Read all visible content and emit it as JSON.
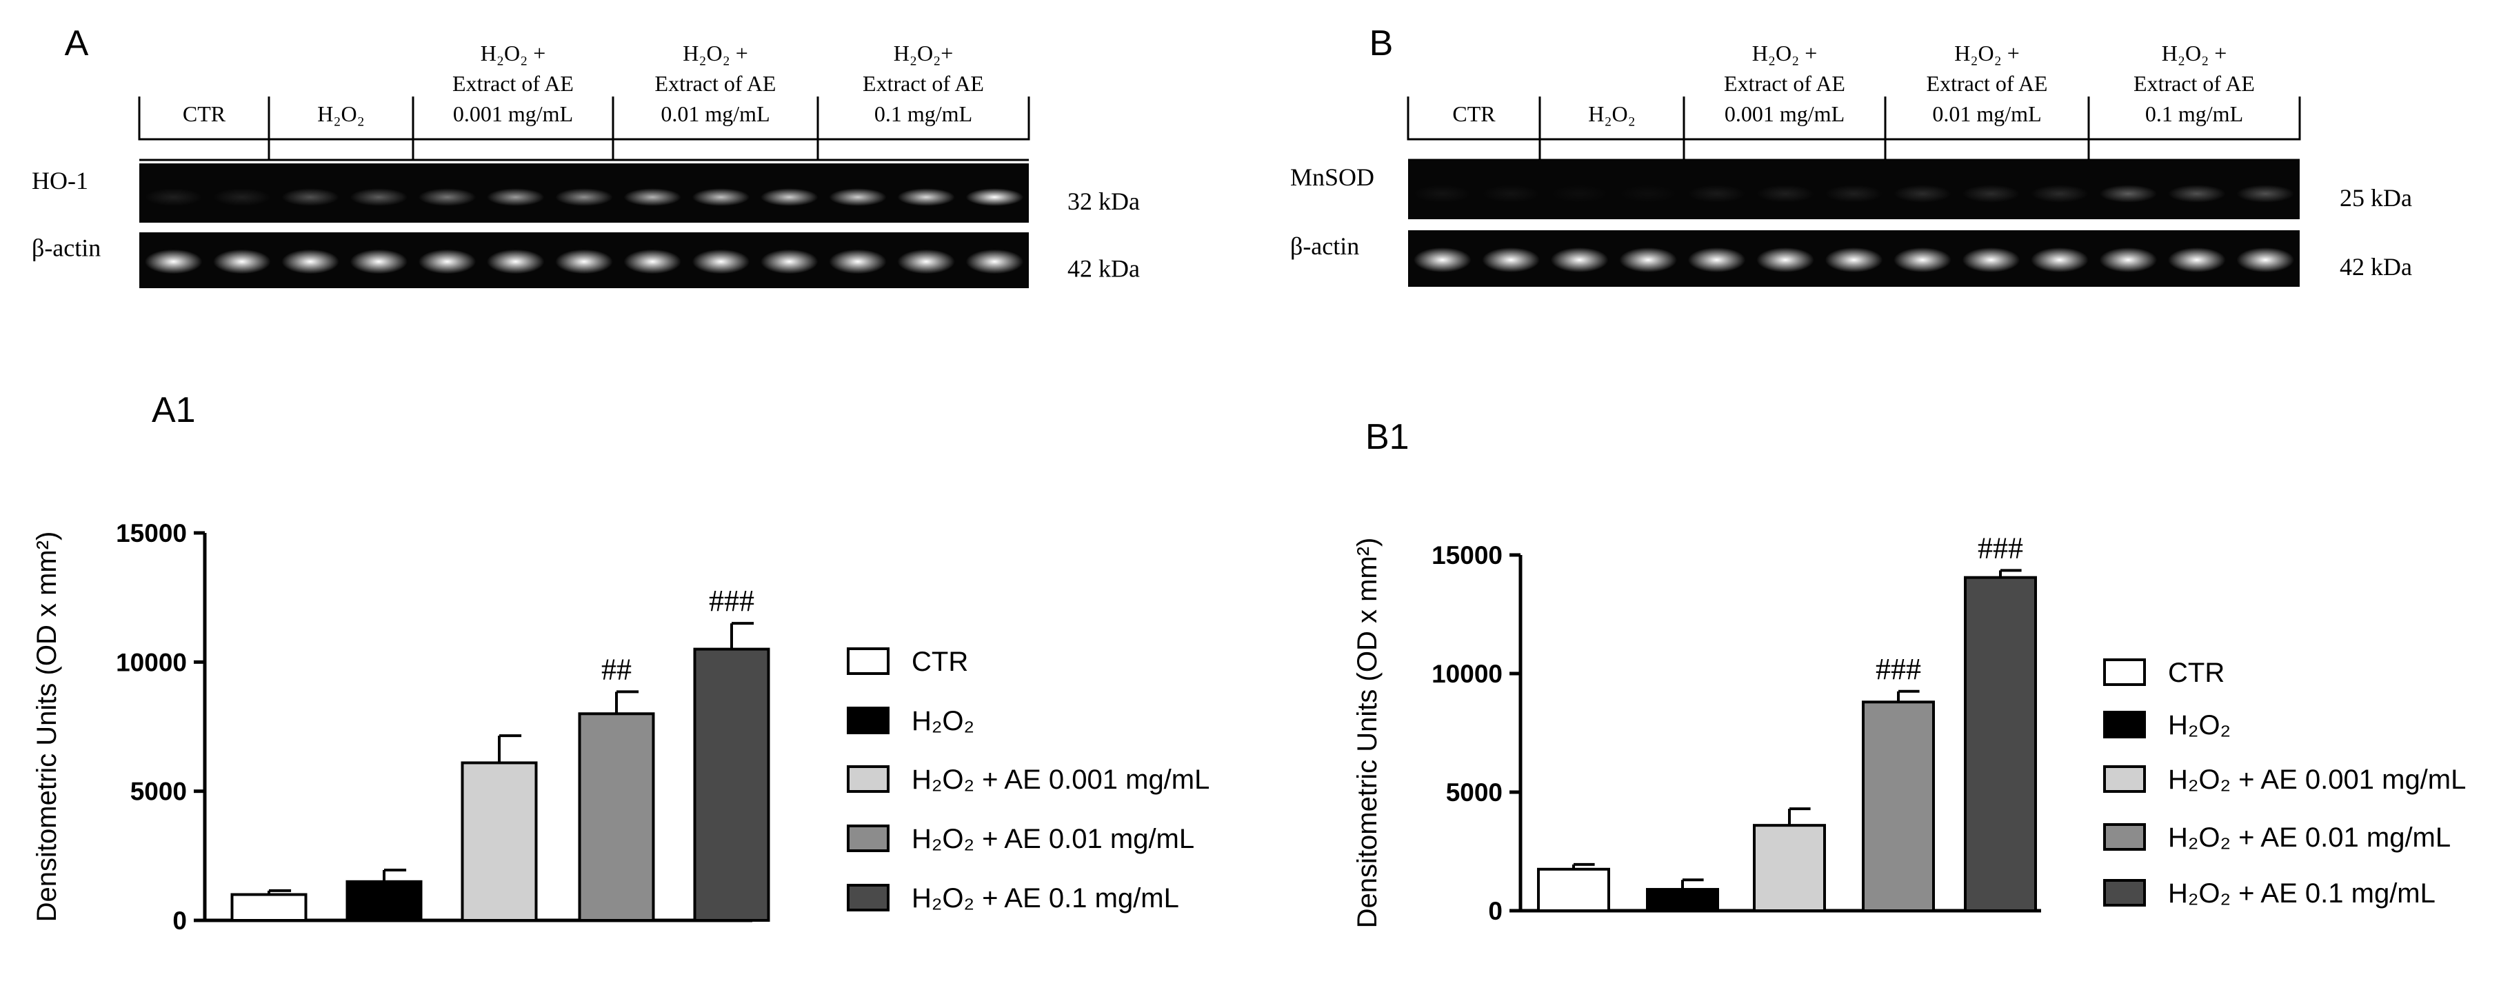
{
  "blots": [
    {
      "label": "A",
      "lanes": [
        [
          "CTR"
        ],
        [
          "H₂O₂"
        ],
        [
          "H₂O₂ +",
          "Extract of AE",
          "0.001 mg/mL"
        ],
        [
          "H₂O₂ +",
          "Extract of AE",
          "0.01 mg/mL"
        ],
        [
          "H₂O₂+",
          "Extract of AE",
          "0.1 mg/mL"
        ]
      ],
      "rows": [
        {
          "name": "HO-1",
          "size": "32 kDa"
        },
        {
          "name": "β-actin",
          "size": "42 kDa"
        }
      ]
    },
    {
      "label": "B",
      "lanes": [
        [
          "CTR"
        ],
        [
          "H₂O₂"
        ],
        [
          "H₂O₂ +",
          "Extract of AE",
          "0.001 mg/mL"
        ],
        [
          "H₂O₂ +",
          "Extract of AE",
          "0.01 mg/mL"
        ],
        [
          "H₂O₂ +",
          "Extract of AE",
          "0.1 mg/mL"
        ]
      ],
      "rows": [
        {
          "name": "MnSOD",
          "size": "25 kDa"
        },
        {
          "name": "β-actin",
          "size": "42 kDa"
        }
      ]
    }
  ],
  "chart_data": [
    {
      "type": "bar",
      "title": "A1",
      "y_label": "Densitometric Units (OD x mm²)",
      "categories": [
        "CTR",
        "H₂O₂",
        "H₂O₂ + AE 0.001 mg/mL",
        "H₂O₂ + AE 0.01 mg/mL",
        "H₂O₂ + AE 0.1 mg/mL"
      ],
      "colors": [
        "#ffffff",
        "#000000",
        "#d0d0d0",
        "#8c8c8c",
        "#4a4a4a"
      ],
      "values": [
        1000,
        1500,
        6100,
        8000,
        10500
      ],
      "errors": [
        150,
        450,
        1050,
        850,
        1000
      ],
      "annotations": [
        null,
        null,
        null,
        "##",
        "###"
      ],
      "ylim": [
        0,
        15000
      ],
      "yticks": [
        0,
        5000,
        10000,
        15000
      ]
    },
    {
      "type": "bar",
      "title": "B1",
      "y_label": "Densitometric Units (OD x mm²)",
      "categories": [
        "CTR",
        "H₂O₂",
        "H₂O₂ + AE 0.001 mg/mL",
        "H₂O₂ + AE 0.01 mg/mL",
        "H₂O₂ + AE 0.1 mg/mL"
      ],
      "colors": [
        "#ffffff",
        "#000000",
        "#d0d0d0",
        "#8c8c8c",
        "#4a4a4a"
      ],
      "values": [
        1750,
        900,
        3600,
        8800,
        14050
      ],
      "errors": [
        200,
        400,
        700,
        450,
        300
      ],
      "annotations": [
        null,
        null,
        null,
        "###",
        "###"
      ],
      "ylim": [
        0,
        15000
      ],
      "yticks": [
        0,
        5000,
        10000,
        15000
      ]
    }
  ]
}
